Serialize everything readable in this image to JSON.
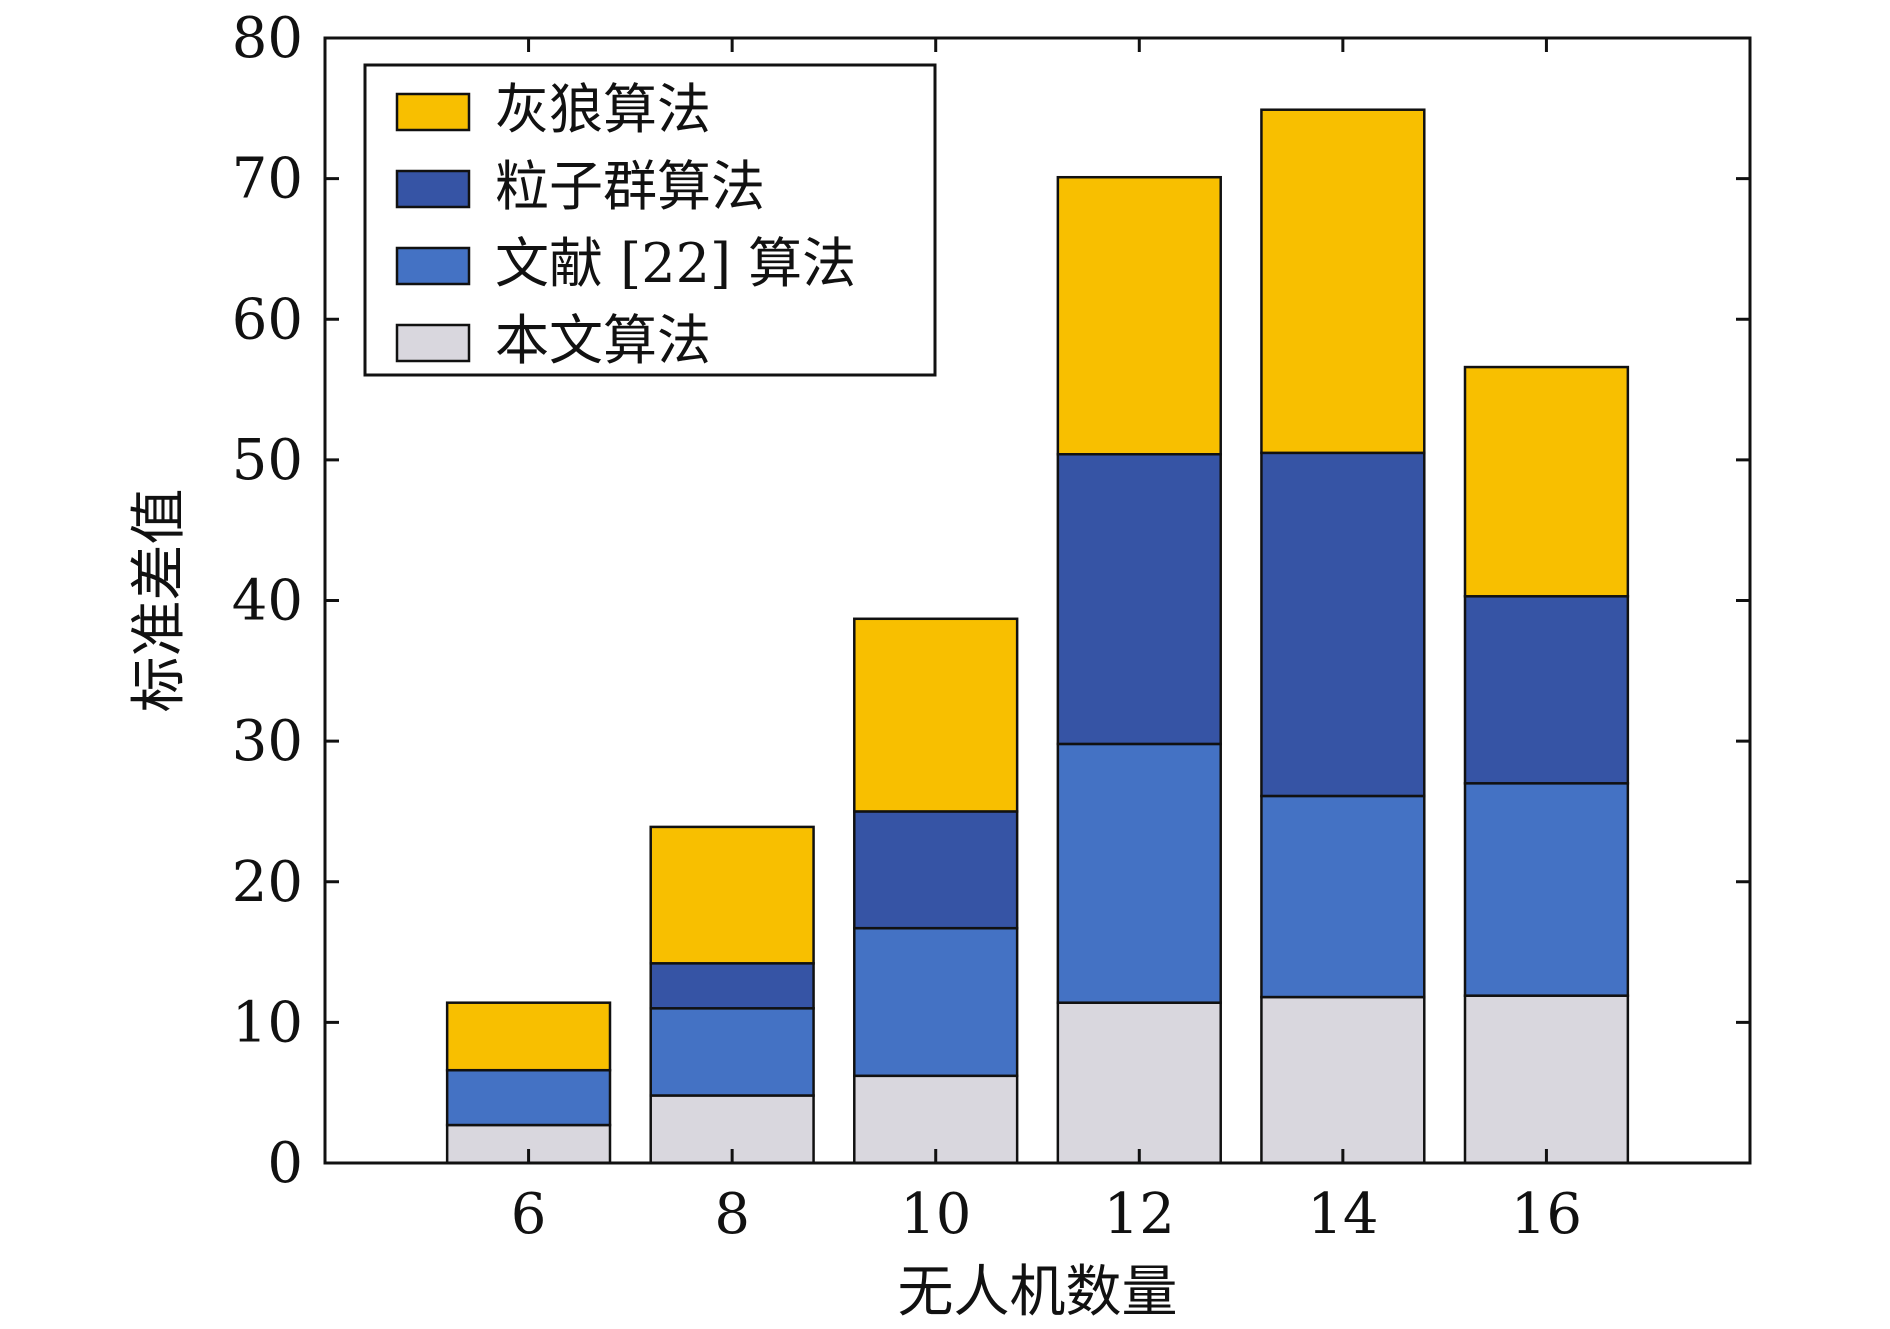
{
  "chart_data": {
    "type": "bar",
    "stacked": true,
    "categories": [
      "6",
      "8",
      "10",
      "12",
      "14",
      "16"
    ],
    "series": [
      {
        "name": "本文算法",
        "color": "#D9D7DE",
        "values": [
          2.7,
          4.8,
          6.2,
          11.4,
          11.8,
          11.9
        ]
      },
      {
        "name": "文献 [22] 算法",
        "color": "#4472C4",
        "values": [
          3.9,
          6.2,
          10.5,
          18.4,
          14.3,
          15.1
        ]
      },
      {
        "name": "粒子群算法",
        "color": "#3654A5",
        "values": [
          0.0,
          3.2,
          8.3,
          20.6,
          24.4,
          13.3
        ]
      },
      {
        "name": "灰狼算法",
        "color": "#F8BF00",
        "values": [
          4.8,
          9.7,
          13.7,
          19.7,
          24.4,
          16.3
        ]
      }
    ],
    "legend_order": [
      "灰狼算法",
      "粒子群算法",
      "文献 [22] 算法",
      "本文算法"
    ],
    "legend_position": "top-left",
    "xlabel": "无人机数量",
    "ylabel": "标准差值",
    "ylim": [
      0,
      80
    ],
    "yticks": [
      "0",
      "10",
      "20",
      "30",
      "40",
      "50",
      "60",
      "70",
      "80"
    ],
    "xticks": [
      "6",
      "8",
      "10",
      "12",
      "14",
      "16"
    ],
    "grid": false
  }
}
